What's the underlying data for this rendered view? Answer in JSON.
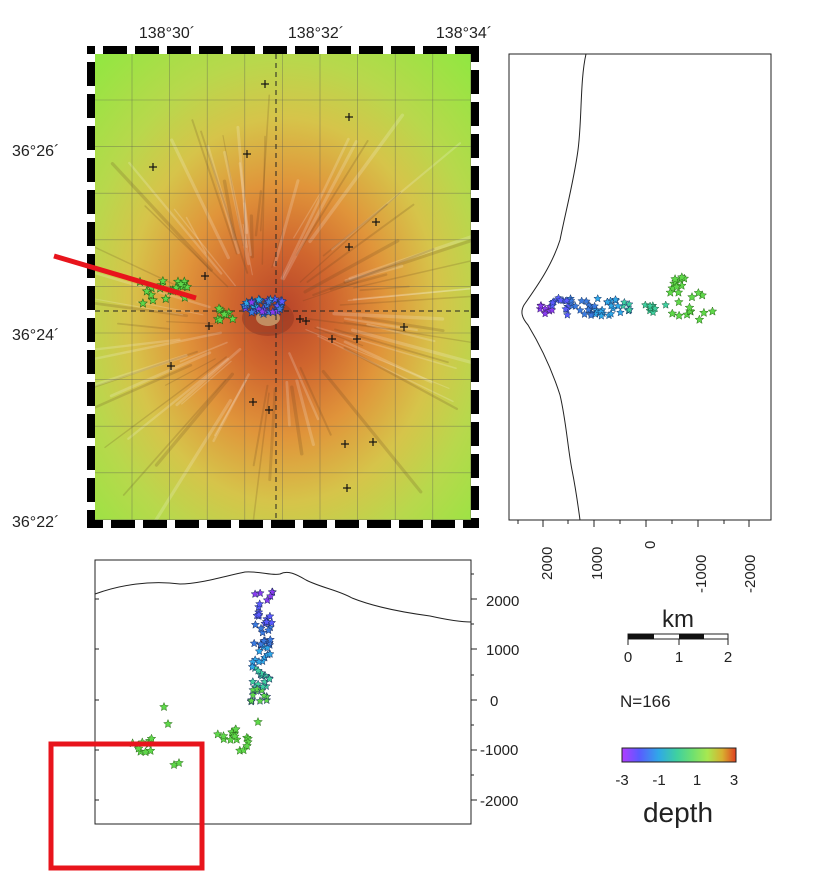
{
  "map": {
    "lon_labels": [
      "138°30´",
      "138°32´",
      "138°34´"
    ],
    "lat_labels": [
      "36°26´",
      "36°24´",
      "36°22´"
    ]
  },
  "cross_section_right": {
    "x_ticks": [
      "2000",
      "1000",
      "0",
      "-1000",
      "-2000"
    ]
  },
  "cross_section_bottom": {
    "y_ticks": [
      "2000",
      "1000",
      "0",
      "-1000",
      "-2000"
    ]
  },
  "scale_bar": {
    "unit": "km",
    "ticks": [
      "0",
      "1",
      "2"
    ]
  },
  "count_label": "N=166",
  "colorbar": {
    "ticks": [
      "-3",
      "-1",
      "1",
      "3"
    ],
    "title": "depth",
    "range": [
      -3,
      3
    ],
    "colors": [
      "#b23cff",
      "#5a5aff",
      "#2fa8e8",
      "#3fd0a0",
      "#6fe070",
      "#a8e850",
      "#d8b030",
      "#e04020"
    ]
  },
  "colors": {
    "section_line": "#e8141c",
    "inset_box": "#e8141c",
    "star_green": "#5fd84a",
    "star_blue": "#3a7be0",
    "star_purple": "#8a3cf0"
  }
}
